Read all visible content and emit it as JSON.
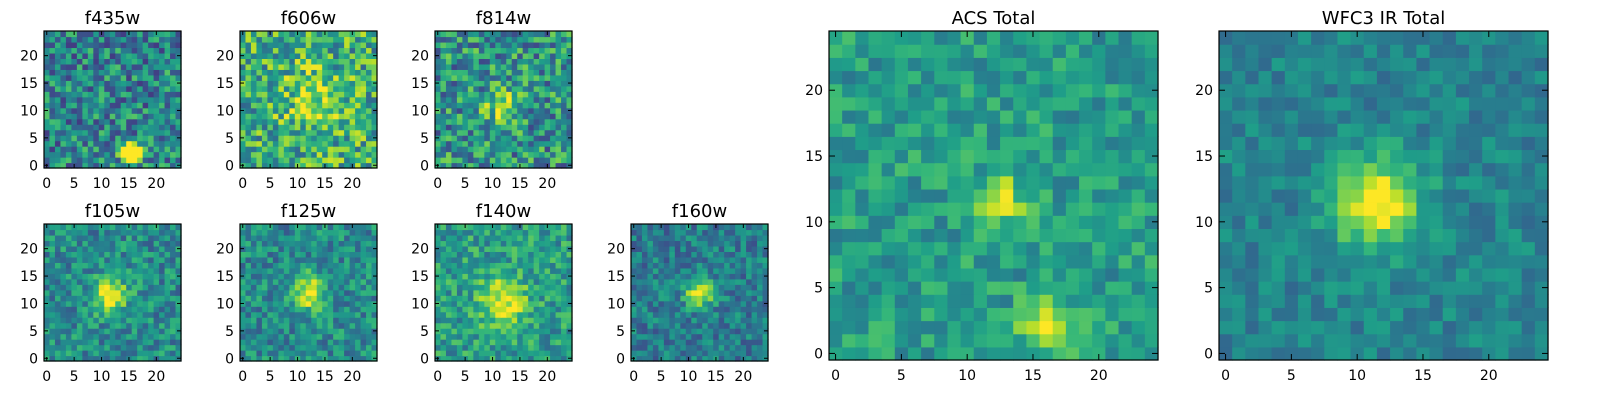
{
  "chart_data": [
    {
      "type": "heatmap",
      "title": "f435w",
      "xlim": [
        0,
        24
      ],
      "ylim": [
        0,
        24
      ],
      "xticks": [
        0,
        5,
        10,
        15,
        20
      ],
      "yticks": [
        0,
        5,
        10,
        15,
        20
      ],
      "tick_labels_x": [
        "0",
        "5",
        "10",
        "15",
        "20"
      ],
      "tick_labels_y": [
        "0",
        "5",
        "10",
        "15",
        "20"
      ],
      "colormap": "viridis",
      "pixels": 25,
      "sources": [
        {
          "x": 15.5,
          "y": 2.5,
          "peak": 1.0,
          "sigma": 1.3
        }
      ],
      "background": 0.45,
      "noise": 0.28
    },
    {
      "type": "heatmap",
      "title": "f606w",
      "xlim": [
        0,
        24
      ],
      "ylim": [
        0,
        24
      ],
      "xticks": [
        0,
        5,
        10,
        15,
        20
      ],
      "yticks": [
        0,
        5,
        10,
        15,
        20
      ],
      "tick_labels_x": [
        "0",
        "5",
        "10",
        "15",
        "20"
      ],
      "tick_labels_y": [
        "0",
        "5",
        "10",
        "15",
        "20"
      ],
      "colormap": "viridis",
      "pixels": 25,
      "sources": [
        {
          "x": 13,
          "y": 12,
          "peak": 0.2,
          "sigma": 4
        }
      ],
      "background": 0.62,
      "noise": 0.3
    },
    {
      "type": "heatmap",
      "title": "f814w",
      "xlim": [
        0,
        24
      ],
      "ylim": [
        0,
        24
      ],
      "xticks": [
        0,
        5,
        10,
        15,
        20
      ],
      "yticks": [
        0,
        5,
        10,
        15,
        20
      ],
      "tick_labels_x": [
        "0",
        "5",
        "10",
        "15",
        "20"
      ],
      "tick_labels_y": [
        "0",
        "5",
        "10",
        "15",
        "20"
      ],
      "colormap": "viridis",
      "pixels": 25,
      "sources": [
        {
          "x": 12,
          "y": 11,
          "peak": 0.35,
          "sigma": 2.5
        }
      ],
      "background": 0.5,
      "noise": 0.3
    },
    {
      "type": "heatmap",
      "title": "f105w",
      "xlim": [
        0,
        24
      ],
      "ylim": [
        0,
        24
      ],
      "xticks": [
        0,
        5,
        10,
        15,
        20
      ],
      "yticks": [
        0,
        5,
        10,
        15,
        20
      ],
      "tick_labels_x": [
        "0",
        "5",
        "10",
        "15",
        "20"
      ],
      "tick_labels_y": [
        "0",
        "5",
        "10",
        "15",
        "20"
      ],
      "colormap": "viridis",
      "pixels": 25,
      "sources": [
        {
          "x": 11.5,
          "y": 11.5,
          "peak": 0.55,
          "sigma": 2.2
        }
      ],
      "background": 0.48,
      "noise": 0.2
    },
    {
      "type": "heatmap",
      "title": "f125w",
      "xlim": [
        0,
        24
      ],
      "ylim": [
        0,
        24
      ],
      "xticks": [
        0,
        5,
        10,
        15,
        20
      ],
      "yticks": [
        0,
        5,
        10,
        15,
        20
      ],
      "tick_labels_x": [
        "0",
        "5",
        "10",
        "15",
        "20"
      ],
      "tick_labels_y": [
        "0",
        "5",
        "10",
        "15",
        "20"
      ],
      "colormap": "viridis",
      "pixels": 25,
      "sources": [
        {
          "x": 12,
          "y": 12,
          "peak": 0.5,
          "sigma": 2.2
        }
      ],
      "background": 0.48,
      "noise": 0.2
    },
    {
      "type": "heatmap",
      "title": "f140w",
      "xlim": [
        0,
        24
      ],
      "ylim": [
        0,
        24
      ],
      "xticks": [
        0,
        5,
        10,
        15,
        20
      ],
      "yticks": [
        0,
        5,
        10,
        15,
        20
      ],
      "tick_labels_x": [
        "0",
        "5",
        "10",
        "15",
        "20"
      ],
      "tick_labels_y": [
        "0",
        "5",
        "10",
        "15",
        "20"
      ],
      "colormap": "viridis",
      "pixels": 25,
      "sources": [
        {
          "x": 12,
          "y": 10.5,
          "peak": 0.45,
          "sigma": 3
        }
      ],
      "background": 0.55,
      "noise": 0.2
    },
    {
      "type": "heatmap",
      "title": "f160w",
      "xlim": [
        0,
        24
      ],
      "ylim": [
        0,
        24
      ],
      "xticks": [
        0,
        5,
        10,
        15,
        20
      ],
      "yticks": [
        0,
        5,
        10,
        15,
        20
      ],
      "tick_labels_x": [
        "0",
        "5",
        "10",
        "15",
        "20"
      ],
      "tick_labels_y": [
        "0",
        "5",
        "10",
        "15",
        "20"
      ],
      "colormap": "viridis",
      "pixels": 25,
      "sources": [
        {
          "x": 12,
          "y": 12,
          "peak": 0.6,
          "sigma": 1.8
        }
      ],
      "background": 0.42,
      "noise": 0.18
    },
    {
      "type": "heatmap",
      "title": "ACS Total",
      "xlim": [
        0,
        24
      ],
      "ylim": [
        0,
        24
      ],
      "xticks": [
        0,
        5,
        10,
        15,
        20
      ],
      "yticks": [
        0,
        5,
        10,
        15,
        20
      ],
      "tick_labels_x": [
        "0",
        "5",
        "10",
        "15",
        "20"
      ],
      "tick_labels_y": [
        "0",
        "5",
        "10",
        "15",
        "20"
      ],
      "colormap": "viridis",
      "pixels": 25,
      "sources": [
        {
          "x": 16,
          "y": 2,
          "peak": 0.55,
          "sigma": 1.3
        },
        {
          "x": 12.5,
          "y": 11.5,
          "peak": 0.35,
          "sigma": 1.5
        }
      ],
      "background": 0.55,
      "noise": 0.16
    },
    {
      "type": "heatmap",
      "title": "WFC3 IR Total",
      "xlim": [
        0,
        24
      ],
      "ylim": [
        0,
        24
      ],
      "xticks": [
        0,
        5,
        10,
        15,
        20
      ],
      "yticks": [
        0,
        5,
        10,
        15,
        20
      ],
      "tick_labels_x": [
        "0",
        "5",
        "10",
        "15",
        "20"
      ],
      "tick_labels_y": [
        "0",
        "5",
        "10",
        "15",
        "20"
      ],
      "colormap": "viridis",
      "pixels": 25,
      "sources": [
        {
          "x": 11.5,
          "y": 11.5,
          "peak": 0.62,
          "sigma": 2.3
        }
      ],
      "background": 0.45,
      "noise": 0.12
    }
  ]
}
